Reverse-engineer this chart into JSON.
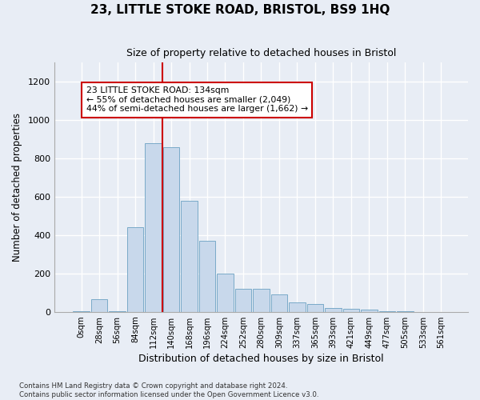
{
  "title": "23, LITTLE STOKE ROAD, BRISTOL, BS9 1HQ",
  "subtitle": "Size of property relative to detached houses in Bristol",
  "xlabel": "Distribution of detached houses by size in Bristol",
  "ylabel": "Number of detached properties",
  "bar_labels": [
    "0sqm",
    "28sqm",
    "56sqm",
    "84sqm",
    "112sqm",
    "140sqm",
    "168sqm",
    "196sqm",
    "224sqm",
    "252sqm",
    "280sqm",
    "309sqm",
    "337sqm",
    "365sqm",
    "393sqm",
    "421sqm",
    "449sqm",
    "477sqm",
    "505sqm",
    "533sqm",
    "561sqm"
  ],
  "bar_values": [
    5,
    65,
    5,
    440,
    880,
    860,
    580,
    370,
    200,
    120,
    120,
    90,
    50,
    40,
    20,
    15,
    10,
    5,
    2,
    1,
    1
  ],
  "bar_color": "#c8d8eb",
  "bar_edge_color": "#7aaac8",
  "background_color": "#e8edf5",
  "grid_color": "#ffffff",
  "vline_color": "#cc0000",
  "vline_x_index": 4.5,
  "annotation_text": "23 LITTLE STOKE ROAD: 134sqm\n← 55% of detached houses are smaller (2,049)\n44% of semi-detached houses are larger (1,662) →",
  "annotation_box_color": "#ffffff",
  "annotation_box_edge": "#cc0000",
  "ylim": [
    0,
    1300
  ],
  "yticks": [
    0,
    200,
    400,
    600,
    800,
    1000,
    1200
  ],
  "footer_line1": "Contains HM Land Registry data © Crown copyright and database right 2024.",
  "footer_line2": "Contains public sector information licensed under the Open Government Licence v3.0."
}
